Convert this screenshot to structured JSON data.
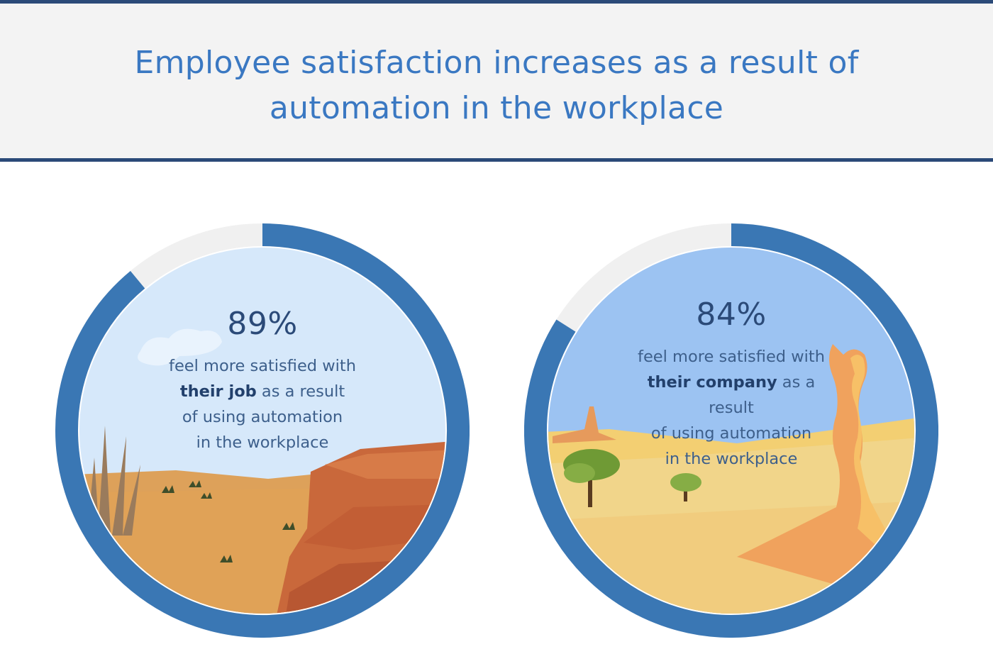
{
  "title": "Employee satisfaction increases as a result of automation in the workplace",
  "colors": {
    "ring": "#3a77b4",
    "track": "#f0f0f0",
    "header_rule": "#2b4a78",
    "title": "#3a78c2"
  },
  "chart_data": [
    {
      "type": "pie",
      "variant": "donut",
      "value": 89,
      "value_label": "89%",
      "caption": {
        "line1": "feel more satisfied with",
        "bold": "their job",
        "line2_rest": " as a result",
        "line3": "of using automation",
        "line4": "in the workplace"
      }
    },
    {
      "type": "pie",
      "variant": "donut",
      "value": 84,
      "value_label": "84%",
      "caption": {
        "line1": "feel more satisfied with",
        "bold": "their company",
        "line2_rest": " as a result",
        "line3": "of using automation",
        "line4": "in the workplace"
      }
    }
  ]
}
